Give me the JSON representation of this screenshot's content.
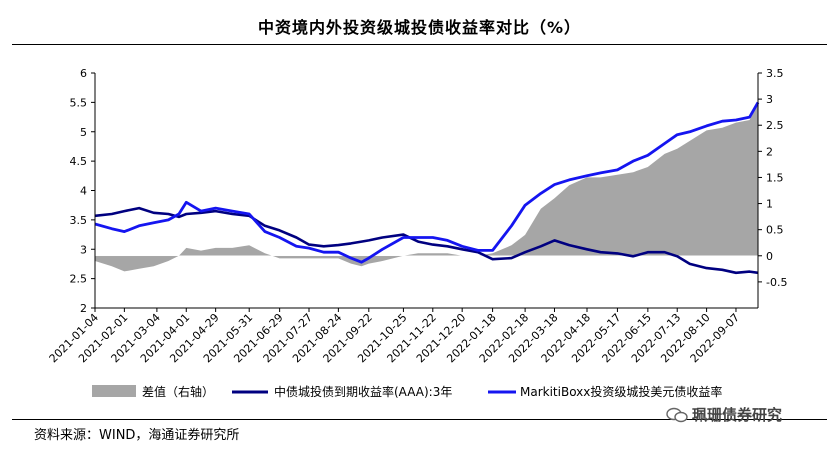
{
  "title": "中资境内外投资级城投债收益率对比（%）",
  "source": "资料来源：WIND，海通证券研究所",
  "watermark": "珮珊债券研究",
  "colors": {
    "spread": "#a6a6a6",
    "domestic": "#000080",
    "offshore": "#1515f0"
  },
  "chart_data": {
    "type": "line",
    "x_tick_labels": [
      "2021-01-04",
      "2021-02-01",
      "2021-03-04",
      "2021-04-01",
      "2021-04-29",
      "2021-05-31",
      "2021-06-29",
      "2021-07-27",
      "2021-08-24",
      "2021-09-22",
      "2021-10-25",
      "2021-11-22",
      "2021-12-20",
      "2022-01-18",
      "2022-02-18",
      "2022-03-18",
      "2022-04-18",
      "2022-05-17",
      "2022-06-15",
      "2022-07-13",
      "2022-08-10",
      "2022-09-07"
    ],
    "x_range": [
      "2021-01-04",
      "2022-09-28"
    ],
    "y_left": {
      "min": 2,
      "max": 6,
      "ticks": [
        "2",
        "2.5",
        "3",
        "3.5",
        "4",
        "4.5",
        "5",
        "5.5",
        "6"
      ]
    },
    "y_right": {
      "min": -1,
      "max": 3.5,
      "ticks": [
        "-0.5",
        "0",
        "0.5",
        "1",
        "1.5",
        "2",
        "2.5",
        "3",
        "3.5"
      ]
    },
    "series": [
      {
        "name": "差值（右轴）",
        "type": "area",
        "axis": "right",
        "x": [
          "2021-01-04",
          "2021-01-20",
          "2021-02-01",
          "2021-02-15",
          "2021-03-01",
          "2021-03-15",
          "2021-03-25",
          "2021-04-01",
          "2021-04-15",
          "2021-04-29",
          "2021-05-15",
          "2021-05-31",
          "2021-06-15",
          "2021-06-29",
          "2021-07-15",
          "2021-07-27",
          "2021-08-10",
          "2021-08-24",
          "2021-09-05",
          "2021-09-15",
          "2021-09-22",
          "2021-10-05",
          "2021-10-25",
          "2021-11-08",
          "2021-11-22",
          "2021-12-06",
          "2021-12-20",
          "2022-01-04",
          "2022-01-18",
          "2022-02-05",
          "2022-02-18",
          "2022-03-05",
          "2022-03-18",
          "2022-04-01",
          "2022-04-18",
          "2022-05-01",
          "2022-05-17",
          "2022-06-01",
          "2022-06-15",
          "2022-07-01",
          "2022-07-13",
          "2022-07-25",
          "2022-08-10",
          "2022-08-25",
          "2022-09-07",
          "2022-09-20",
          "2022-09-28"
        ],
        "values": [
          -0.1,
          -0.2,
          -0.3,
          -0.25,
          -0.2,
          -0.1,
          0.0,
          0.15,
          0.1,
          0.15,
          0.15,
          0.2,
          0.05,
          -0.05,
          -0.05,
          -0.05,
          -0.05,
          -0.05,
          -0.15,
          -0.2,
          -0.15,
          -0.1,
          0.0,
          0.05,
          0.05,
          0.05,
          0.0,
          0.0,
          0.05,
          0.2,
          0.4,
          0.9,
          1.1,
          1.35,
          1.5,
          1.5,
          1.55,
          1.6,
          1.7,
          1.95,
          2.05,
          2.2,
          2.4,
          2.45,
          2.55,
          2.6,
          2.95
        ]
      },
      {
        "name": "中债城投债到期收益率(AAA):3年",
        "type": "line",
        "axis": "left",
        "x": [
          "2021-01-04",
          "2021-01-20",
          "2021-02-01",
          "2021-02-15",
          "2021-03-01",
          "2021-03-15",
          "2021-03-25",
          "2021-04-01",
          "2021-04-15",
          "2021-04-29",
          "2021-05-15",
          "2021-05-31",
          "2021-06-15",
          "2021-06-29",
          "2021-07-15",
          "2021-07-27",
          "2021-08-10",
          "2021-08-24",
          "2021-09-05",
          "2021-09-15",
          "2021-09-22",
          "2021-10-05",
          "2021-10-25",
          "2021-11-08",
          "2021-11-22",
          "2021-12-06",
          "2021-12-20",
          "2022-01-04",
          "2022-01-18",
          "2022-02-05",
          "2022-02-18",
          "2022-03-05",
          "2022-03-18",
          "2022-04-01",
          "2022-04-18",
          "2022-05-01",
          "2022-05-17",
          "2022-06-01",
          "2022-06-15",
          "2022-07-01",
          "2022-07-13",
          "2022-07-25",
          "2022-08-10",
          "2022-08-25",
          "2022-09-07",
          "2022-09-20",
          "2022-09-28"
        ],
        "values": [
          3.57,
          3.6,
          3.65,
          3.7,
          3.62,
          3.6,
          3.55,
          3.6,
          3.62,
          3.65,
          3.6,
          3.57,
          3.4,
          3.32,
          3.2,
          3.08,
          3.05,
          3.07,
          3.1,
          3.13,
          3.15,
          3.2,
          3.25,
          3.13,
          3.08,
          3.05,
          3.0,
          2.95,
          2.83,
          2.85,
          2.95,
          3.05,
          3.15,
          3.07,
          3.0,
          2.95,
          2.93,
          2.88,
          2.95,
          2.95,
          2.88,
          2.75,
          2.68,
          2.65,
          2.6,
          2.62,
          2.6
        ]
      },
      {
        "name": "MarkitiBoxx投资级城投美元债收益率",
        "type": "line",
        "axis": "left",
        "x": [
          "2021-01-04",
          "2021-01-20",
          "2021-02-01",
          "2021-02-15",
          "2021-03-01",
          "2021-03-15",
          "2021-03-25",
          "2021-04-01",
          "2021-04-15",
          "2021-04-29",
          "2021-05-15",
          "2021-05-31",
          "2021-06-15",
          "2021-06-29",
          "2021-07-15",
          "2021-07-27",
          "2021-08-10",
          "2021-08-24",
          "2021-09-05",
          "2021-09-15",
          "2021-09-22",
          "2021-10-05",
          "2021-10-25",
          "2021-11-08",
          "2021-11-22",
          "2021-12-06",
          "2021-12-20",
          "2022-01-04",
          "2022-01-18",
          "2022-02-05",
          "2022-02-18",
          "2022-03-05",
          "2022-03-18",
          "2022-04-01",
          "2022-04-18",
          "2022-05-01",
          "2022-05-17",
          "2022-06-01",
          "2022-06-15",
          "2022-07-01",
          "2022-07-13",
          "2022-07-25",
          "2022-08-10",
          "2022-08-25",
          "2022-09-07",
          "2022-09-20",
          "2022-09-28"
        ],
        "values": [
          3.43,
          3.35,
          3.3,
          3.4,
          3.45,
          3.5,
          3.6,
          3.8,
          3.65,
          3.7,
          3.65,
          3.6,
          3.3,
          3.2,
          3.05,
          3.02,
          2.95,
          2.95,
          2.85,
          2.78,
          2.85,
          3.0,
          3.2,
          3.2,
          3.2,
          3.15,
          3.05,
          2.98,
          2.98,
          3.4,
          3.75,
          3.95,
          4.1,
          4.18,
          4.25,
          4.3,
          4.35,
          4.5,
          4.6,
          4.8,
          4.95,
          5.0,
          5.1,
          5.18,
          5.2,
          5.25,
          5.5
        ]
      }
    ]
  }
}
